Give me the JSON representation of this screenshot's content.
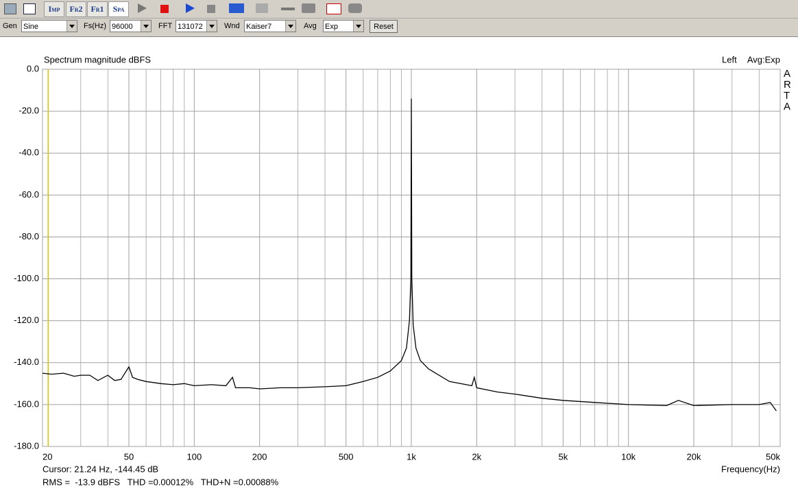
{
  "toolbar": {
    "buttons": [
      "Imp",
      "Fr2",
      "Fr1",
      "Spa"
    ],
    "gen_label": "Gen",
    "gen": "Sine",
    "fs_label": "Fs(Hz)",
    "fs": "96000",
    "fft_label": "FFT",
    "fft": "131072",
    "wnd_label": "Wnd",
    "wnd": "Kaiser7",
    "avg_label": "Avg",
    "avg": "Exp",
    "reset": "Reset"
  },
  "chart_data": {
    "type": "line",
    "title": "Spectrum magnitude dBFS",
    "channel": "Left",
    "avg_info": "Avg:Exp",
    "brand": "ARTA",
    "x_label": "Frequency(Hz)",
    "xscale": "log",
    "x": [
      20,
      22,
      25,
      28,
      30,
      33,
      36,
      40,
      43,
      46,
      50,
      52,
      55,
      60,
      65,
      70,
      80,
      90,
      100,
      120,
      140,
      150,
      155,
      180,
      200,
      250,
      300,
      400,
      500,
      600,
      700,
      800,
      900,
      950,
      980,
      995,
      1000,
      1005,
      1020,
      1050,
      1100,
      1200,
      1500,
      1900,
      1950,
      2000,
      2500,
      3000,
      4000,
      5000,
      7000,
      10000,
      15000,
      17000,
      20000,
      30000,
      40000,
      45000,
      48000
    ],
    "values": [
      -145,
      -145.5,
      -145,
      -146.5,
      -146,
      -146,
      -148.5,
      -146,
      -148.5,
      -148,
      -142,
      -147,
      -148,
      -149,
      -149.5,
      -150,
      -150.5,
      -150,
      -151,
      -150.5,
      -151,
      -147,
      -152,
      -152,
      -152.5,
      -152,
      -152,
      -151.5,
      -151,
      -149,
      -147,
      -144,
      -139,
      -133,
      -120,
      -100,
      -14,
      -100,
      -122,
      -133,
      -139,
      -143,
      -149,
      -151,
      -147,
      -152,
      -154,
      -155,
      -157,
      -158,
      -159,
      -160,
      -160.5,
      -158,
      -160.5,
      -160,
      -160,
      -159,
      -163
    ],
    "color": "#000000",
    "grid": true,
    "grid_color": "#a0a0a0",
    "xlim": [
      20,
      50000
    ],
    "xticks": [
      20,
      50,
      100,
      200,
      500,
      {
        "value": 1000,
        "label": "1k"
      },
      {
        "value": 2000,
        "label": "2k"
      },
      {
        "value": 5000,
        "label": "5k"
      },
      {
        "value": 10000,
        "label": "10k"
      },
      {
        "value": 20000,
        "label": "20k"
      },
      {
        "value": 50000,
        "label": "50k"
      }
    ],
    "xminor": [
      30,
      40,
      60,
      70,
      80,
      90,
      300,
      400,
      600,
      700,
      800,
      900,
      3000,
      4000,
      6000,
      7000,
      8000,
      9000,
      30000,
      40000
    ],
    "ylim": [
      -180,
      0
    ],
    "yticks": [
      {
        "value": 0,
        "label": "0.0"
      },
      {
        "value": -20,
        "label": "-20.0"
      },
      {
        "value": -40,
        "label": "-40.0"
      },
      {
        "value": -60,
        "label": "-60.0"
      },
      {
        "value": -80,
        "label": "-80.0"
      },
      {
        "value": -100,
        "label": "-100.0"
      },
      {
        "value": -120,
        "label": "-120.0"
      },
      {
        "value": -140,
        "label": "-140.0"
      },
      {
        "value": -160,
        "label": "-160.0"
      },
      {
        "value": -180,
        "label": "-180.0"
      }
    ],
    "cursor_x": 21.24,
    "cursor_color": "#d8c400",
    "cursor_text": "Cursor: 21.24 Hz, -144.45 dB",
    "stats": "RMS =  -13.9 dBFS   THD =0.00012%   THD+N =0.00088%",
    "stats_color": "#c00000"
  }
}
